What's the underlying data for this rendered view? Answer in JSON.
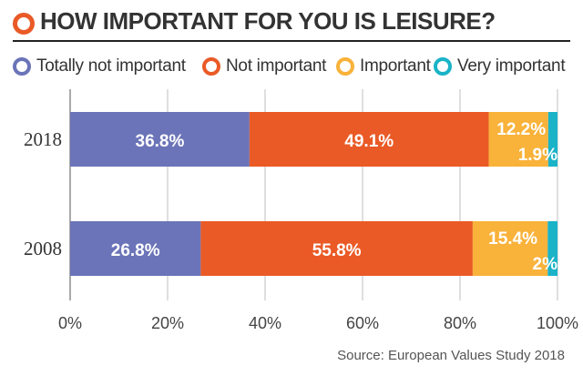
{
  "header": {
    "title": "HOW IMPORTANT FOR YOU IS LEISURE?"
  },
  "colors": {
    "accent": "#ea5a26",
    "text": "#333333",
    "grid": "#bfbfbf"
  },
  "chart_data": {
    "type": "bar",
    "orientation": "horizontal",
    "stacked": true,
    "title": "HOW IMPORTANT FOR YOU IS LEISURE?",
    "categories": [
      "2018",
      "2008"
    ],
    "series": [
      {
        "name": "Totally not important",
        "color": "#6b74b8",
        "values": [
          36.8,
          26.8
        ],
        "labels": [
          "36.8%",
          "26.8%"
        ]
      },
      {
        "name": "Not important",
        "color": "#ea5a26",
        "values": [
          49.1,
          55.8
        ],
        "labels": [
          "49.1%",
          "55.8%"
        ]
      },
      {
        "name": "Important",
        "color": "#f9b23a",
        "values": [
          12.2,
          15.4
        ],
        "labels": [
          "12.2%",
          "15.4%"
        ]
      },
      {
        "name": "Very important",
        "color": "#1ab3c8",
        "values": [
          1.9,
          2.0
        ],
        "labels": [
          "1.9%",
          "2%"
        ]
      }
    ],
    "xlim": [
      0,
      100
    ],
    "xticks": [
      "0%",
      "20%",
      "40%",
      "60%",
      "80%",
      "100%"
    ],
    "grid": true,
    "legend": "top",
    "source": "Source: European Values Study 2018"
  }
}
